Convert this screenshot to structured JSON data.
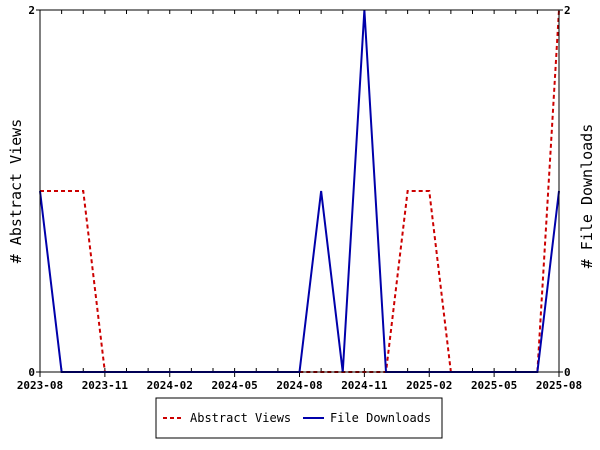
{
  "chart_data": {
    "type": "line",
    "title": "",
    "x_tick_labels": [
      "2023-08",
      "2023-11",
      "2024-02",
      "2024-05",
      "2024-08",
      "2024-11",
      "2025-02",
      "2025-05",
      "2025-08"
    ],
    "months": [
      "2023-08",
      "2023-09",
      "2023-10",
      "2023-11",
      "2023-12",
      "2024-01",
      "2024-02",
      "2024-03",
      "2024-04",
      "2024-05",
      "2024-06",
      "2024-07",
      "2024-08",
      "2024-09",
      "2024-10",
      "2024-11",
      "2024-12",
      "2025-01",
      "2025-02",
      "2025-03",
      "2025-04",
      "2025-05",
      "2025-06",
      "2025-07",
      "2025-08"
    ],
    "ylabel_left": "# Abstract Views",
    "ylabel_right": "# File Downloads",
    "ylim_left": [
      0,
      2
    ],
    "ylim_right": [
      0,
      2
    ],
    "y_tick_labels_left": [
      "0",
      "2"
    ],
    "y_tick_labels_right": [
      "0",
      "2"
    ],
    "grid": false,
    "legend_position": "bottom",
    "series": [
      {
        "name": "Abstract Views",
        "axis": "left",
        "style": "dashed",
        "color": "#cc0000",
        "values": [
          1,
          1,
          1,
          0,
          0,
          0,
          0,
          0,
          0,
          0,
          0,
          0,
          0,
          0,
          0,
          0,
          0,
          1,
          1,
          0,
          0,
          0,
          0,
          0,
          2
        ]
      },
      {
        "name": "File Downloads",
        "axis": "right",
        "style": "solid",
        "color": "#0000aa",
        "values": [
          1,
          0,
          0,
          0,
          0,
          0,
          0,
          0,
          0,
          0,
          0,
          0,
          0,
          1,
          0,
          2,
          0,
          0,
          0,
          0,
          0,
          0,
          0,
          0,
          1
        ]
      }
    ]
  }
}
